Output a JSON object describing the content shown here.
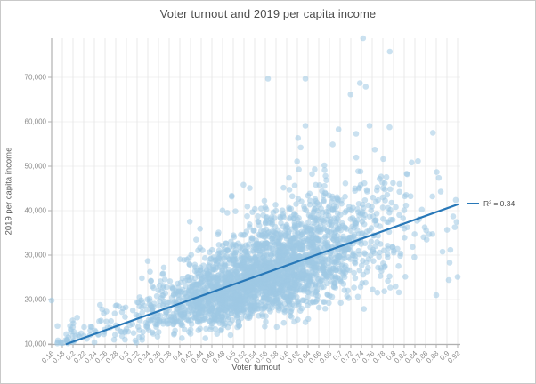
{
  "chart_data": {
    "type": "scatter",
    "title": "Voter turnout and 2019 per capita income",
    "xlabel": "Voter turnout",
    "ylabel": "2019 per capita income",
    "xlim": [
      0.16,
      0.92
    ],
    "ylim": [
      10000,
      79000
    ],
    "grid": true,
    "x_ticks": [
      "0.16",
      "0.18",
      "0.2",
      "0.22",
      "0.24",
      "0.26",
      "0.28",
      "0.3",
      "0.32",
      "0.34",
      "0.36",
      "0.38",
      "0.4",
      "0.42",
      "0.44",
      "0.46",
      "0.48",
      "0.5",
      "0.52",
      "0.54",
      "0.56",
      "0.58",
      "0.6",
      "0.62",
      "0.64",
      "0.66",
      "0.68",
      "0.7",
      "0.72",
      "0.74",
      "0.76",
      "0.78",
      "0.8",
      "0.82",
      "0.84",
      "0.86",
      "0.88",
      "0.9",
      "0.92"
    ],
    "y_ticks": [
      {
        "value": 10000,
        "label": "10,000"
      },
      {
        "value": 20000,
        "label": "20,000"
      },
      {
        "value": 30000,
        "label": "30,000"
      },
      {
        "value": 40000,
        "label": "40,000"
      },
      {
        "value": 50000,
        "label": "50,000"
      },
      {
        "value": 60000,
        "label": "60,000"
      },
      {
        "value": 70000,
        "label": "70,000"
      }
    ],
    "legend": {
      "label": "R² = 0.34",
      "position": "right-of-plot",
      "swatch_color": "#2878b8"
    },
    "trendline": {
      "type": "linear",
      "r_squared": 0.34,
      "x_start": 0.188,
      "y_start": 10000,
      "x_end": 0.92,
      "y_end": 41400,
      "color": "#2878b8",
      "width": 2.2
    },
    "points_style": {
      "color": "#9ec8e4",
      "opacity": 0.55,
      "radius": 3.3
    },
    "point_cloud": {
      "description": "approx. one dot per US county; dense cloud rising with turnout",
      "count": 2750,
      "seed": 7,
      "x_mean": 0.565,
      "x_sd": 0.105,
      "x_range": [
        0.161,
        0.919
      ],
      "x_mix": [
        {
          "weight": 0.045,
          "uniform": [
            0.17,
            0.5
          ]
        },
        {
          "weight": 0.02,
          "uniform": [
            0.72,
            0.92
          ]
        }
      ],
      "trend_intercept": 1800,
      "trend_slope": 43000,
      "lognormal_sigma": 0.21,
      "y_range": [
        10100,
        74000
      ]
    },
    "notable_points": [
      [
        0.743,
        78800
      ],
      [
        0.793,
        75800
      ],
      [
        0.565,
        69700
      ],
      [
        0.635,
        69700
      ],
      [
        0.737,
        68700
      ],
      [
        0.748,
        67900
      ],
      [
        0.73,
        57300
      ],
      [
        0.697,
        58300
      ],
      [
        0.755,
        59100
      ],
      [
        0.635,
        59100
      ],
      [
        0.16,
        19800
      ],
      [
        0.92,
        25100
      ],
      [
        0.905,
        28300
      ],
      [
        0.88,
        21000
      ]
    ]
  },
  "style": {
    "grid_color_vertical": "#e9e9e9",
    "grid_color_horizontal": "#f0f0f0",
    "axis_color": "#b0b0b0",
    "tick_label_color": "#8a8a8a",
    "title_color": "#4d4d4d"
  }
}
